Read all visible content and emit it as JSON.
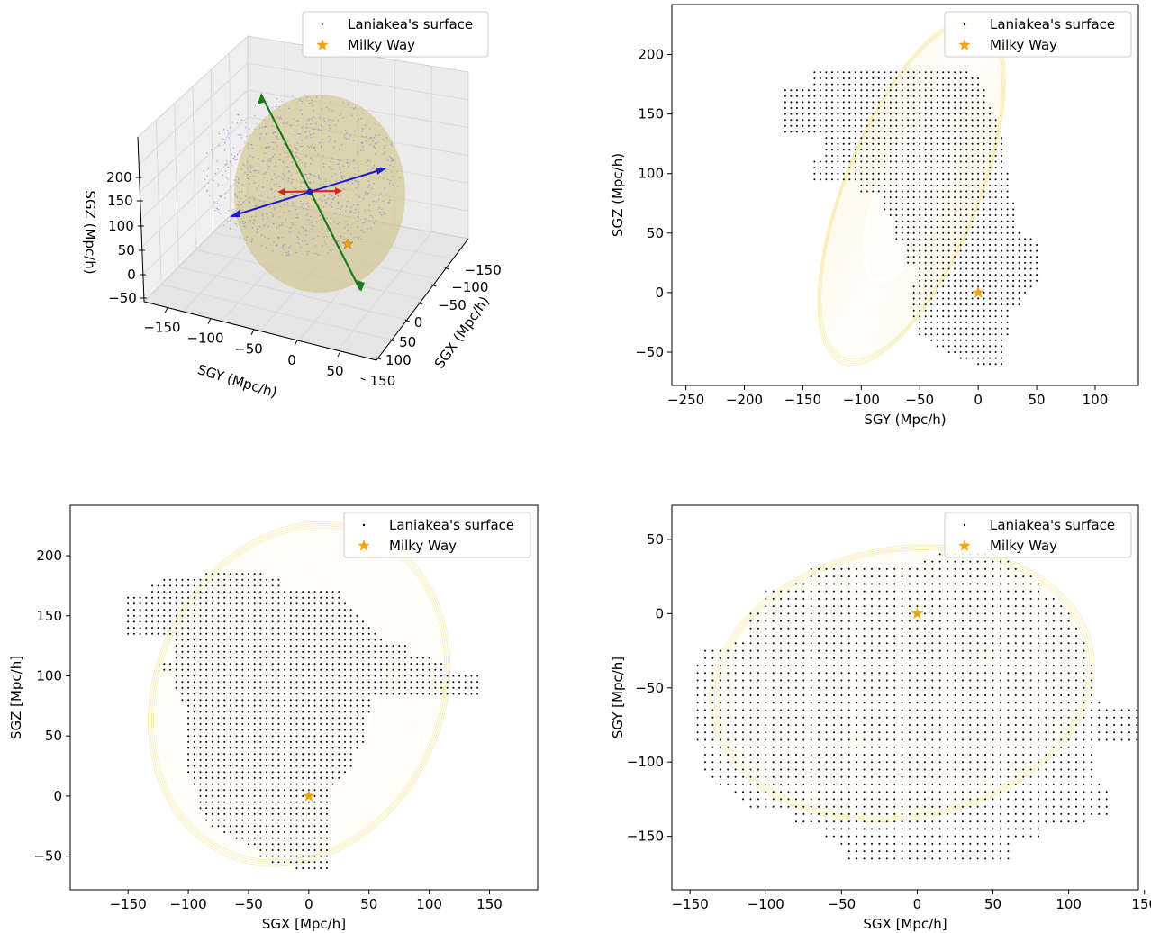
{
  "colors": {
    "surface_dots": "#000000",
    "surface_dots_3d": "#6f6fe6",
    "milky_way": "#f5a20f",
    "ellipsoid_fill": "#f6d86a",
    "ellipsoid_3d": "#cdbf7a",
    "axis_x_arrow": "#e02020",
    "axis_y_arrow": "#1c1cc8",
    "axis_z_arrow": "#1d7a1d"
  },
  "chart_data": [
    {
      "type": "scatter-3d",
      "xlabel": "SGX (Mpc/h)",
      "ylabel": "SGY (Mpc/h)",
      "zlabel": "SGZ (Mpc/h)",
      "x_ticks": [
        "−150",
        "−100",
        "−50",
        "0",
        "50",
        "100",
        "150"
      ],
      "y_ticks": [
        "−150",
        "−100",
        "−50",
        "0",
        "50"
      ],
      "z_ticks": [
        "200",
        "150",
        "100",
        "50",
        "0",
        "−50"
      ],
      "legend": [
        "Laniakea's surface",
        "Milky Way"
      ],
      "legend_position": "top-right",
      "grid": true
    },
    {
      "type": "scatter",
      "xlabel": "SGY (Mpc/h)",
      "ylabel": "SGZ (Mpc/h)",
      "xlim": [
        -262,
        137
      ],
      "ylim": [
        -78,
        242
      ],
      "x_ticks": [
        -250,
        -200,
        -150,
        -100,
        -50,
        0,
        50,
        100
      ],
      "y_ticks": [
        -50,
        0,
        50,
        100,
        150,
        200
      ],
      "legend": [
        "Laniakea's surface",
        "Milky Way"
      ],
      "legend_position": "top-right",
      "ellipse": {
        "cx": -57,
        "cy": 85,
        "rx": 58,
        "ry": 156,
        "angle_deg": 22
      },
      "milky_way": [
        0,
        0
      ],
      "grid_step": 5,
      "surface_rows": [
        {
          "y": 185,
          "x_min": -140,
          "x_max": -10
        },
        {
          "y": 180,
          "x_min": -140,
          "x_max": 0
        },
        {
          "y": 175,
          "x_min": -140,
          "x_max": 0
        },
        {
          "y": 170,
          "x_min": -165,
          "x_max": 5
        },
        {
          "y": 165,
          "x_min": -165,
          "x_max": 5
        },
        {
          "y": 160,
          "x_min": -165,
          "x_max": 5
        },
        {
          "y": 155,
          "x_min": -165,
          "x_max": 10
        },
        {
          "y": 150,
          "x_min": -165,
          "x_max": 10
        },
        {
          "y": 145,
          "x_min": -165,
          "x_max": 15
        },
        {
          "y": 140,
          "x_min": -165,
          "x_max": 15
        },
        {
          "y": 135,
          "x_min": -165,
          "x_max": 15
        },
        {
          "y": 130,
          "x_min": -130,
          "x_max": 20
        },
        {
          "y": 125,
          "x_min": -130,
          "x_max": 20
        },
        {
          "y": 120,
          "x_min": -130,
          "x_max": 20
        },
        {
          "y": 115,
          "x_min": -130,
          "x_max": 20
        },
        {
          "y": 110,
          "x_min": -140,
          "x_max": 20
        },
        {
          "y": 105,
          "x_min": -140,
          "x_max": 20
        },
        {
          "y": 100,
          "x_min": -140,
          "x_max": 25
        },
        {
          "y": 95,
          "x_min": -140,
          "x_max": 25
        },
        {
          "y": 90,
          "x_min": -100,
          "x_max": 25
        },
        {
          "y": 85,
          "x_min": -100,
          "x_max": 25
        },
        {
          "y": 80,
          "x_min": -80,
          "x_max": 25
        },
        {
          "y": 75,
          "x_min": -80,
          "x_max": 30
        },
        {
          "y": 70,
          "x_min": -80,
          "x_max": 30
        },
        {
          "y": 65,
          "x_min": -75,
          "x_max": 30
        },
        {
          "y": 60,
          "x_min": -70,
          "x_max": 30
        },
        {
          "y": 55,
          "x_min": -70,
          "x_max": 30
        },
        {
          "y": 50,
          "x_min": -70,
          "x_max": 35
        },
        {
          "y": 45,
          "x_min": -70,
          "x_max": 45
        },
        {
          "y": 40,
          "x_min": -60,
          "x_max": 50
        },
        {
          "y": 35,
          "x_min": -60,
          "x_max": 50
        },
        {
          "y": 30,
          "x_min": -60,
          "x_max": 50
        },
        {
          "y": 25,
          "x_min": -60,
          "x_max": 50
        },
        {
          "y": 20,
          "x_min": -50,
          "x_max": 50
        },
        {
          "y": 15,
          "x_min": -50,
          "x_max": 50
        },
        {
          "y": 10,
          "x_min": -50,
          "x_max": 50
        },
        {
          "y": 5,
          "x_min": -55,
          "x_max": 45
        },
        {
          "y": 0,
          "x_min": -55,
          "x_max": 40
        },
        {
          "y": -5,
          "x_min": -55,
          "x_max": 35
        },
        {
          "y": -10,
          "x_min": -55,
          "x_max": 35
        },
        {
          "y": -15,
          "x_min": -55,
          "x_max": 25
        },
        {
          "y": -20,
          "x_min": -55,
          "x_max": 25
        },
        {
          "y": -25,
          "x_min": -50,
          "x_max": 25
        },
        {
          "y": -30,
          "x_min": -50,
          "x_max": 25
        },
        {
          "y": -35,
          "x_min": -50,
          "x_max": 25
        },
        {
          "y": -40,
          "x_min": -40,
          "x_max": 20
        },
        {
          "y": -45,
          "x_min": -35,
          "x_max": 20
        },
        {
          "y": -50,
          "x_min": -25,
          "x_max": 20
        },
        {
          "y": -55,
          "x_min": -15,
          "x_max": 20
        },
        {
          "y": -60,
          "x_min": 0,
          "x_max": 20
        }
      ]
    },
    {
      "type": "scatter",
      "xlabel": "SGX [Mpc/h]",
      "ylabel": "SGZ [Mpc/h]",
      "xlim": [
        -198,
        190
      ],
      "ylim": [
        -78,
        242
      ],
      "x_ticks": [
        -150,
        -100,
        -50,
        0,
        50,
        100,
        150
      ],
      "y_ticks": [
        -50,
        0,
        50,
        100,
        150,
        200
      ],
      "legend": [
        "Laniakea's surface",
        "Milky Way"
      ],
      "legend_position": "top-right",
      "ellipse": {
        "cx": -8,
        "cy": 85,
        "rx": 120,
        "ry": 148,
        "angle_deg": 25
      },
      "milky_way": [
        0,
        0
      ],
      "grid_step": 5,
      "surface_rows": [
        {
          "y": 185,
          "x_min": -85,
          "x_max": -40
        },
        {
          "y": 180,
          "x_min": -120,
          "x_max": -25
        },
        {
          "y": 175,
          "x_min": -130,
          "x_max": -25
        },
        {
          "y": 170,
          "x_min": -130,
          "x_max": 25
        },
        {
          "y": 165,
          "x_min": -150,
          "x_max": 25
        },
        {
          "y": 160,
          "x_min": -150,
          "x_max": 30
        },
        {
          "y": 155,
          "x_min": -150,
          "x_max": 35
        },
        {
          "y": 150,
          "x_min": -150,
          "x_max": 40
        },
        {
          "y": 145,
          "x_min": -150,
          "x_max": 45
        },
        {
          "y": 140,
          "x_min": -150,
          "x_max": 50
        },
        {
          "y": 135,
          "x_min": -150,
          "x_max": 55
        },
        {
          "y": 130,
          "x_min": -110,
          "x_max": 60
        },
        {
          "y": 125,
          "x_min": -110,
          "x_max": 80
        },
        {
          "y": 120,
          "x_min": -110,
          "x_max": 80
        },
        {
          "y": 115,
          "x_min": -110,
          "x_max": 100
        },
        {
          "y": 110,
          "x_min": -120,
          "x_max": 110
        },
        {
          "y": 105,
          "x_min": -120,
          "x_max": 110
        },
        {
          "y": 100,
          "x_min": -110,
          "x_max": 140
        },
        {
          "y": 95,
          "x_min": -110,
          "x_max": 140
        },
        {
          "y": 90,
          "x_min": -110,
          "x_max": 140
        },
        {
          "y": 85,
          "x_min": -105,
          "x_max": 140
        },
        {
          "y": 80,
          "x_min": -105,
          "x_max": 50
        },
        {
          "y": 75,
          "x_min": -100,
          "x_max": 50
        },
        {
          "y": 70,
          "x_min": -100,
          "x_max": 50
        },
        {
          "y": 65,
          "x_min": -100,
          "x_max": 45
        },
        {
          "y": 60,
          "x_min": -100,
          "x_max": 45
        },
        {
          "y": 55,
          "x_min": -100,
          "x_max": 45
        },
        {
          "y": 50,
          "x_min": -100,
          "x_max": 45
        },
        {
          "y": 45,
          "x_min": -100,
          "x_max": 45
        },
        {
          "y": 40,
          "x_min": -100,
          "x_max": 40
        },
        {
          "y": 35,
          "x_min": -100,
          "x_max": 35
        },
        {
          "y": 30,
          "x_min": -100,
          "x_max": 35
        },
        {
          "y": 25,
          "x_min": -100,
          "x_max": 35
        },
        {
          "y": 20,
          "x_min": -100,
          "x_max": 30
        },
        {
          "y": 15,
          "x_min": -95,
          "x_max": 25
        },
        {
          "y": 10,
          "x_min": -95,
          "x_max": 20
        },
        {
          "y": 5,
          "x_min": -90,
          "x_max": 15
        },
        {
          "y": 0,
          "x_min": -90,
          "x_max": 15
        },
        {
          "y": -5,
          "x_min": -90,
          "x_max": 15
        },
        {
          "y": -10,
          "x_min": -90,
          "x_max": 15
        },
        {
          "y": -15,
          "x_min": -85,
          "x_max": 15
        },
        {
          "y": -20,
          "x_min": -85,
          "x_max": 15
        },
        {
          "y": -25,
          "x_min": -80,
          "x_max": 15
        },
        {
          "y": -30,
          "x_min": -70,
          "x_max": 15
        },
        {
          "y": -35,
          "x_min": -60,
          "x_max": 15
        },
        {
          "y": -40,
          "x_min": -50,
          "x_max": 15
        },
        {
          "y": -45,
          "x_min": -40,
          "x_max": 15
        },
        {
          "y": -50,
          "x_min": -40,
          "x_max": 15
        },
        {
          "y": -55,
          "x_min": -30,
          "x_max": 15
        },
        {
          "y": -60,
          "x_min": -10,
          "x_max": 15
        }
      ]
    },
    {
      "type": "scatter",
      "xlabel": "SGX [Mpc/h]",
      "ylabel": "SGY [Mpc/h]",
      "xlim": [
        -162,
        146
      ],
      "ylim": [
        -186,
        73
      ],
      "x_ticks": [
        -150,
        -100,
        -50,
        0,
        50,
        100,
        150
      ],
      "y_ticks": [
        -150,
        -100,
        -50,
        0,
        50
      ],
      "legend": [
        "Laniakea's surface",
        "Milky Way"
      ],
      "legend_position": "top-right",
      "ellipse": {
        "cx": -10,
        "cy": -47,
        "rx": 128,
        "ry": 92,
        "angle_deg": -10
      },
      "milky_way": [
        0,
        0
      ],
      "grid_step": 5,
      "surface_rows": [
        {
          "y": 40,
          "x_min": 15,
          "x_max": 50
        },
        {
          "y": 35,
          "x_min": 5,
          "x_max": 60
        },
        {
          "y": 30,
          "x_min": -70,
          "x_max": 65
        },
        {
          "y": 25,
          "x_min": -70,
          "x_max": 75
        },
        {
          "y": 20,
          "x_min": -80,
          "x_max": 80
        },
        {
          "y": 15,
          "x_min": -100,
          "x_max": 80
        },
        {
          "y": 10,
          "x_min": -100,
          "x_max": 90
        },
        {
          "y": 5,
          "x_min": -100,
          "x_max": 95
        },
        {
          "y": 0,
          "x_min": -110,
          "x_max": 100
        },
        {
          "y": -5,
          "x_min": -110,
          "x_max": 100
        },
        {
          "y": -10,
          "x_min": -110,
          "x_max": 105
        },
        {
          "y": -15,
          "x_min": -110,
          "x_max": 105
        },
        {
          "y": -20,
          "x_min": -120,
          "x_max": 110
        },
        {
          "y": -25,
          "x_min": -140,
          "x_max": 110
        },
        {
          "y": -30,
          "x_min": -140,
          "x_max": 110
        },
        {
          "y": -35,
          "x_min": -145,
          "x_max": 115
        },
        {
          "y": -40,
          "x_min": -145,
          "x_max": 115
        },
        {
          "y": -45,
          "x_min": -145,
          "x_max": 115
        },
        {
          "y": -50,
          "x_min": -145,
          "x_max": 115
        },
        {
          "y": -55,
          "x_min": -145,
          "x_max": 115
        },
        {
          "y": -60,
          "x_min": -145,
          "x_max": 120
        },
        {
          "y": -65,
          "x_min": -145,
          "x_max": 145
        },
        {
          "y": -70,
          "x_min": -145,
          "x_max": 145
        },
        {
          "y": -75,
          "x_min": -145,
          "x_max": 145
        },
        {
          "y": -80,
          "x_min": -145,
          "x_max": 145
        },
        {
          "y": -85,
          "x_min": -145,
          "x_max": 145
        },
        {
          "y": -90,
          "x_min": -140,
          "x_max": 115
        },
        {
          "y": -95,
          "x_min": -140,
          "x_max": 115
        },
        {
          "y": -100,
          "x_min": -140,
          "x_max": 115
        },
        {
          "y": -105,
          "x_min": -140,
          "x_max": 115
        },
        {
          "y": -110,
          "x_min": -135,
          "x_max": 115
        },
        {
          "y": -115,
          "x_min": -130,
          "x_max": 120
        },
        {
          "y": -120,
          "x_min": -120,
          "x_max": 125
        },
        {
          "y": -125,
          "x_min": -115,
          "x_max": 125
        },
        {
          "y": -130,
          "x_min": -110,
          "x_max": 125
        },
        {
          "y": -135,
          "x_min": -80,
          "x_max": 125
        },
        {
          "y": -140,
          "x_min": -80,
          "x_max": 110
        },
        {
          "y": -145,
          "x_min": -60,
          "x_max": 80
        },
        {
          "y": -150,
          "x_min": -60,
          "x_max": 80
        },
        {
          "y": -155,
          "x_min": -50,
          "x_max": 60
        },
        {
          "y": -160,
          "x_min": -45,
          "x_max": 60
        },
        {
          "y": -165,
          "x_min": -45,
          "x_max": 60
        }
      ]
    }
  ]
}
